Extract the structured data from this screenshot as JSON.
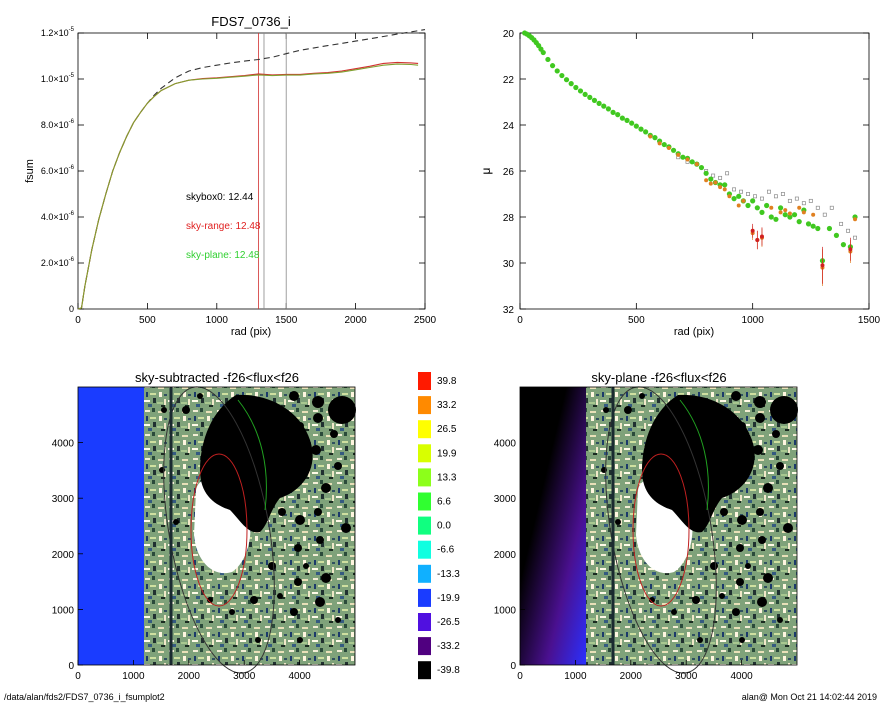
{
  "page": {
    "footer_left": "/data/alan/fds2/FDS7_0736_i_fsumplot2",
    "footer_right": "alan@  Mon Oct 21 14:02:44 2019"
  },
  "chart_data": [
    {
      "type": "line",
      "title": "FDS7_0736_i",
      "xlabel": "rad (pix)",
      "ylabel": "fsum",
      "xlim": [
        0,
        2500
      ],
      "ylim": [
        0,
        1.2e-05
      ],
      "xticks": [
        0,
        500,
        1000,
        1500,
        2000,
        2500
      ],
      "yticks": [
        {
          "value": 0,
          "mantissa": "0",
          "exponent": ""
        },
        {
          "value": 2e-06,
          "mantissa": "2.0×10",
          "exponent": "-6"
        },
        {
          "value": 4e-06,
          "mantissa": "4.0×10",
          "exponent": "-6"
        },
        {
          "value": 6e-06,
          "mantissa": "6.0×10",
          "exponent": "-6"
        },
        {
          "value": 8e-06,
          "mantissa": "8.0×10",
          "exponent": "-6"
        },
        {
          "value": 1e-05,
          "mantissa": "1.0×10",
          "exponent": "-5"
        },
        {
          "value": 1.2e-05,
          "mantissa": "1.2×10",
          "exponent": "-5"
        }
      ],
      "vlines": [
        {
          "x": 1300,
          "color": "#d23030"
        },
        {
          "x": 1340,
          "color": "#888888"
        },
        {
          "x": 1500,
          "color": "#888888"
        }
      ],
      "annotations": [
        {
          "text": "skybox0: 12.44",
          "color": "#000000"
        },
        {
          "text": "sky-range: 12.48",
          "color": "#e02020"
        },
        {
          "text": "sky-plane: 12.48",
          "color": "#30d030"
        }
      ],
      "series": [
        {
          "style": "dashed",
          "color": "#333333",
          "x": [
            0,
            25,
            50,
            100,
            150,
            200,
            250,
            300,
            350,
            400,
            450,
            500,
            550,
            600,
            700,
            800,
            900,
            1000,
            1100,
            1200,
            1300,
            1400,
            1500,
            1600,
            1700,
            1800,
            1900,
            2000,
            2100,
            2200,
            2300,
            2400,
            2500
          ],
          "y": [
            0,
            5e-08,
            1e-06,
            2.6e-06,
            3.9e-06,
            5e-06,
            6e-06,
            6.8e-06,
            7.5e-06,
            8.1e-06,
            8.55e-06,
            8.95e-06,
            9.3e-06,
            9.6e-06,
            1.005e-05,
            1.035e-05,
            1.05e-05,
            1.06e-05,
            1.07e-05,
            1.078e-05,
            1.085e-05,
            1.095e-05,
            1.11e-05,
            1.125e-05,
            1.135e-05,
            1.145e-05,
            1.155e-05,
            1.165e-05,
            1.175e-05,
            1.185e-05,
            1.195e-05,
            1.205e-05,
            1.215e-05
          ]
        },
        {
          "style": "solid",
          "color": "#d23030",
          "x": [
            0,
            25,
            50,
            100,
            150,
            200,
            250,
            300,
            350,
            400,
            450,
            500,
            550,
            600,
            700,
            800,
            900,
            1000,
            1100,
            1200,
            1300,
            1400,
            1500,
            1600,
            1700,
            1800,
            1900,
            2000,
            2100,
            2200,
            2300,
            2400,
            2450
          ],
          "y": [
            0,
            5e-08,
            1e-06,
            2.6e-06,
            3.9e-06,
            5e-06,
            6e-06,
            6.8e-06,
            7.5e-06,
            8.1e-06,
            8.55e-06,
            8.95e-06,
            9.25e-06,
            9.5e-06,
            9.8e-06,
            9.95e-06,
            1.002e-05,
            1.005e-05,
            1.01e-05,
            1.015e-05,
            1.022e-05,
            1.018e-05,
            1.02e-05,
            1.02e-05,
            1.025e-05,
            1.028e-05,
            1.035e-05,
            1.045e-05,
            1.055e-05,
            1.068e-05,
            1.072e-05,
            1.07e-05,
            1.068e-05
          ]
        },
        {
          "style": "solid",
          "color": "#80a030",
          "x": [
            0,
            25,
            50,
            100,
            150,
            200,
            250,
            300,
            350,
            400,
            450,
            500,
            550,
            600,
            700,
            800,
            900,
            1000,
            1100,
            1200,
            1300,
            1400,
            1500,
            1600,
            1700,
            1800,
            1900,
            2000,
            2100,
            2200,
            2300,
            2400,
            2450
          ],
          "y": [
            0,
            5e-08,
            1e-06,
            2.6e-06,
            3.9e-06,
            5e-06,
            6e-06,
            6.8e-06,
            7.5e-06,
            8.1e-06,
            8.55e-06,
            8.95e-06,
            9.25e-06,
            9.5e-06,
            9.8e-06,
            9.95e-06,
            1e-05,
            1.003e-05,
            1.008e-05,
            1.012e-05,
            1.018e-05,
            1.015e-05,
            1.017e-05,
            1.017e-05,
            1.022e-05,
            1.025e-05,
            1.03e-05,
            1.04e-05,
            1.05e-05,
            1.06e-05,
            1.065e-05,
            1.063e-05,
            1.06e-05
          ]
        }
      ]
    },
    {
      "type": "scatter",
      "title": "",
      "xlabel": "rad (pix)",
      "ylabel": "μ",
      "xlim": [
        0,
        1500
      ],
      "ylim": [
        32,
        20
      ],
      "xticks": [
        0,
        500,
        1000,
        1500
      ],
      "yticks": [
        20,
        22,
        24,
        26,
        28,
        30,
        32
      ],
      "series": [
        {
          "name": "green",
          "color": "#40c820",
          "x": [
            0,
            10,
            20,
            30,
            40,
            50,
            60,
            70,
            80,
            90,
            100,
            120,
            140,
            160,
            180,
            200,
            220,
            240,
            260,
            280,
            300,
            320,
            340,
            360,
            380,
            400,
            420,
            440,
            460,
            480,
            500,
            520,
            540,
            560,
            580,
            600,
            620,
            640,
            660,
            680,
            700,
            720,
            740,
            760,
            780,
            800,
            820,
            840,
            860,
            880,
            900,
            920,
            940,
            960,
            980,
            1000,
            1020,
            1040,
            1060,
            1080,
            1100,
            1120,
            1140,
            1160,
            1180,
            1200,
            1220,
            1240,
            1260,
            1280,
            1300,
            1330,
            1360,
            1390,
            1420,
            1440
          ],
          "y": [
            19.95,
            19.97,
            20.0,
            20.05,
            20.12,
            20.2,
            20.3,
            20.42,
            20.55,
            20.7,
            20.85,
            21.15,
            21.42,
            21.65,
            21.85,
            22.03,
            22.2,
            22.37,
            22.52,
            22.67,
            22.8,
            22.93,
            23.06,
            23.18,
            23.3,
            23.45,
            23.55,
            23.7,
            23.8,
            23.92,
            24.05,
            24.18,
            24.3,
            24.45,
            24.55,
            24.7,
            24.85,
            24.95,
            25.1,
            25.25,
            25.4,
            25.45,
            25.6,
            25.7,
            25.85,
            26.1,
            26.35,
            26.5,
            26.6,
            26.6,
            27.0,
            27.2,
            27.1,
            27.3,
            27.5,
            27.3,
            27.6,
            27.8,
            27.5,
            28.0,
            28.1,
            27.6,
            27.9,
            28.0,
            27.9,
            28.2,
            27.7,
            28.3,
            28.4,
            28.5,
            29.9,
            28.5,
            28.8,
            29.2,
            29.3,
            28.0
          ],
          "err": [
            0,
            0,
            0,
            0,
            0,
            0,
            0,
            0,
            0,
            0,
            0,
            0,
            0,
            0,
            0,
            0,
            0,
            0,
            0,
            0,
            0,
            0,
            0,
            0,
            0,
            0,
            0,
            0,
            0,
            0,
            0,
            0,
            0,
            0,
            0,
            0,
            0,
            0,
            0,
            0,
            0,
            0,
            0,
            0,
            0,
            0,
            0,
            0,
            0,
            0,
            0,
            0,
            0,
            0,
            0,
            0,
            0,
            0,
            0,
            0,
            0,
            0,
            0,
            0,
            0,
            0,
            0,
            0,
            0,
            0,
            0,
            0,
            0,
            0,
            0,
            0
          ]
        },
        {
          "name": "orange",
          "color": "#e08020",
          "x": [
            560,
            600,
            640,
            680,
            720,
            760,
            800,
            820,
            840,
            860,
            880,
            900,
            940,
            960,
            1000,
            1020,
            1040,
            1080,
            1120,
            1140,
            1160,
            1200,
            1220,
            1260,
            1300,
            1420,
            1440
          ],
          "y": [
            24.5,
            24.8,
            25.0,
            25.3,
            25.5,
            25.7,
            26.4,
            26.55,
            26.5,
            26.7,
            26.8,
            27.1,
            27.5,
            27.3,
            28.7,
            29.0,
            28.9,
            27.6,
            27.8,
            27.7,
            27.85,
            27.6,
            27.8,
            27.9,
            30.2,
            29.5,
            28.1
          ],
          "err": [
            0,
            0,
            0,
            0,
            0,
            0,
            0,
            0,
            0,
            0,
            0,
            0,
            0,
            0,
            0.3,
            0.4,
            0.4,
            0,
            0,
            0,
            0,
            0,
            0,
            0,
            0.8,
            0.5,
            0
          ]
        },
        {
          "name": "red",
          "color": "#d02020",
          "x": [
            1000,
            1020,
            1040,
            1300,
            1420
          ],
          "y": [
            28.6,
            29.0,
            28.85,
            30.1,
            29.4
          ],
          "err": [
            0.3,
            0.4,
            0.4,
            0.8,
            0.5
          ]
        },
        {
          "name": "gray",
          "color": "#8a8a8a",
          "x": [
            680,
            720,
            760,
            800,
            830,
            860,
            890,
            920,
            950,
            980,
            1010,
            1040,
            1070,
            1100,
            1130,
            1160,
            1190,
            1220,
            1250,
            1280,
            1310,
            1340,
            1380,
            1410,
            1440
          ],
          "y": [
            25.4,
            25.6,
            25.7,
            26.0,
            26.2,
            26.3,
            26.1,
            26.8,
            26.9,
            27.0,
            27.1,
            27.2,
            26.9,
            27.1,
            27.0,
            27.3,
            27.2,
            27.4,
            27.3,
            27.6,
            27.9,
            27.6,
            28.3,
            28.6,
            28.9
          ],
          "err": []
        }
      ]
    },
    {
      "type": "image",
      "title": "sky-subtracted -f26<flux<f26",
      "xlim": [
        0,
        5000
      ],
      "ylim": [
        0,
        5000
      ],
      "xticks": [
        0,
        1000,
        2000,
        3000,
        4000
      ],
      "yticks": [
        0,
        1000,
        2000,
        3000,
        4000
      ],
      "masked_strip_color": "#1a3cff"
    },
    {
      "type": "colorbar",
      "labels": [
        "39.8",
        "33.2",
        "26.5",
        "19.9",
        "13.3",
        "6.6",
        "0.0",
        "-6.6",
        "-13.3",
        "-19.9",
        "-26.5",
        "-33.2",
        "-39.8"
      ],
      "colors": [
        "#ff1a00",
        "#ff8a00",
        "#ffff00",
        "#d8ff00",
        "#8cff1a",
        "#30ff30",
        "#10ff80",
        "#10ffe0",
        "#10b0ff",
        "#1a3cff",
        "#5010e0",
        "#500080",
        "#000000"
      ]
    },
    {
      "type": "image",
      "title": "sky-plane -f26<flux<f26",
      "xlim": [
        0,
        5000
      ],
      "ylim": [
        0,
        5000
      ],
      "xticks": [
        0,
        1000,
        2000,
        3000,
        4000
      ],
      "yticks": [
        0,
        1000,
        2000,
        3000,
        4000
      ]
    }
  ]
}
